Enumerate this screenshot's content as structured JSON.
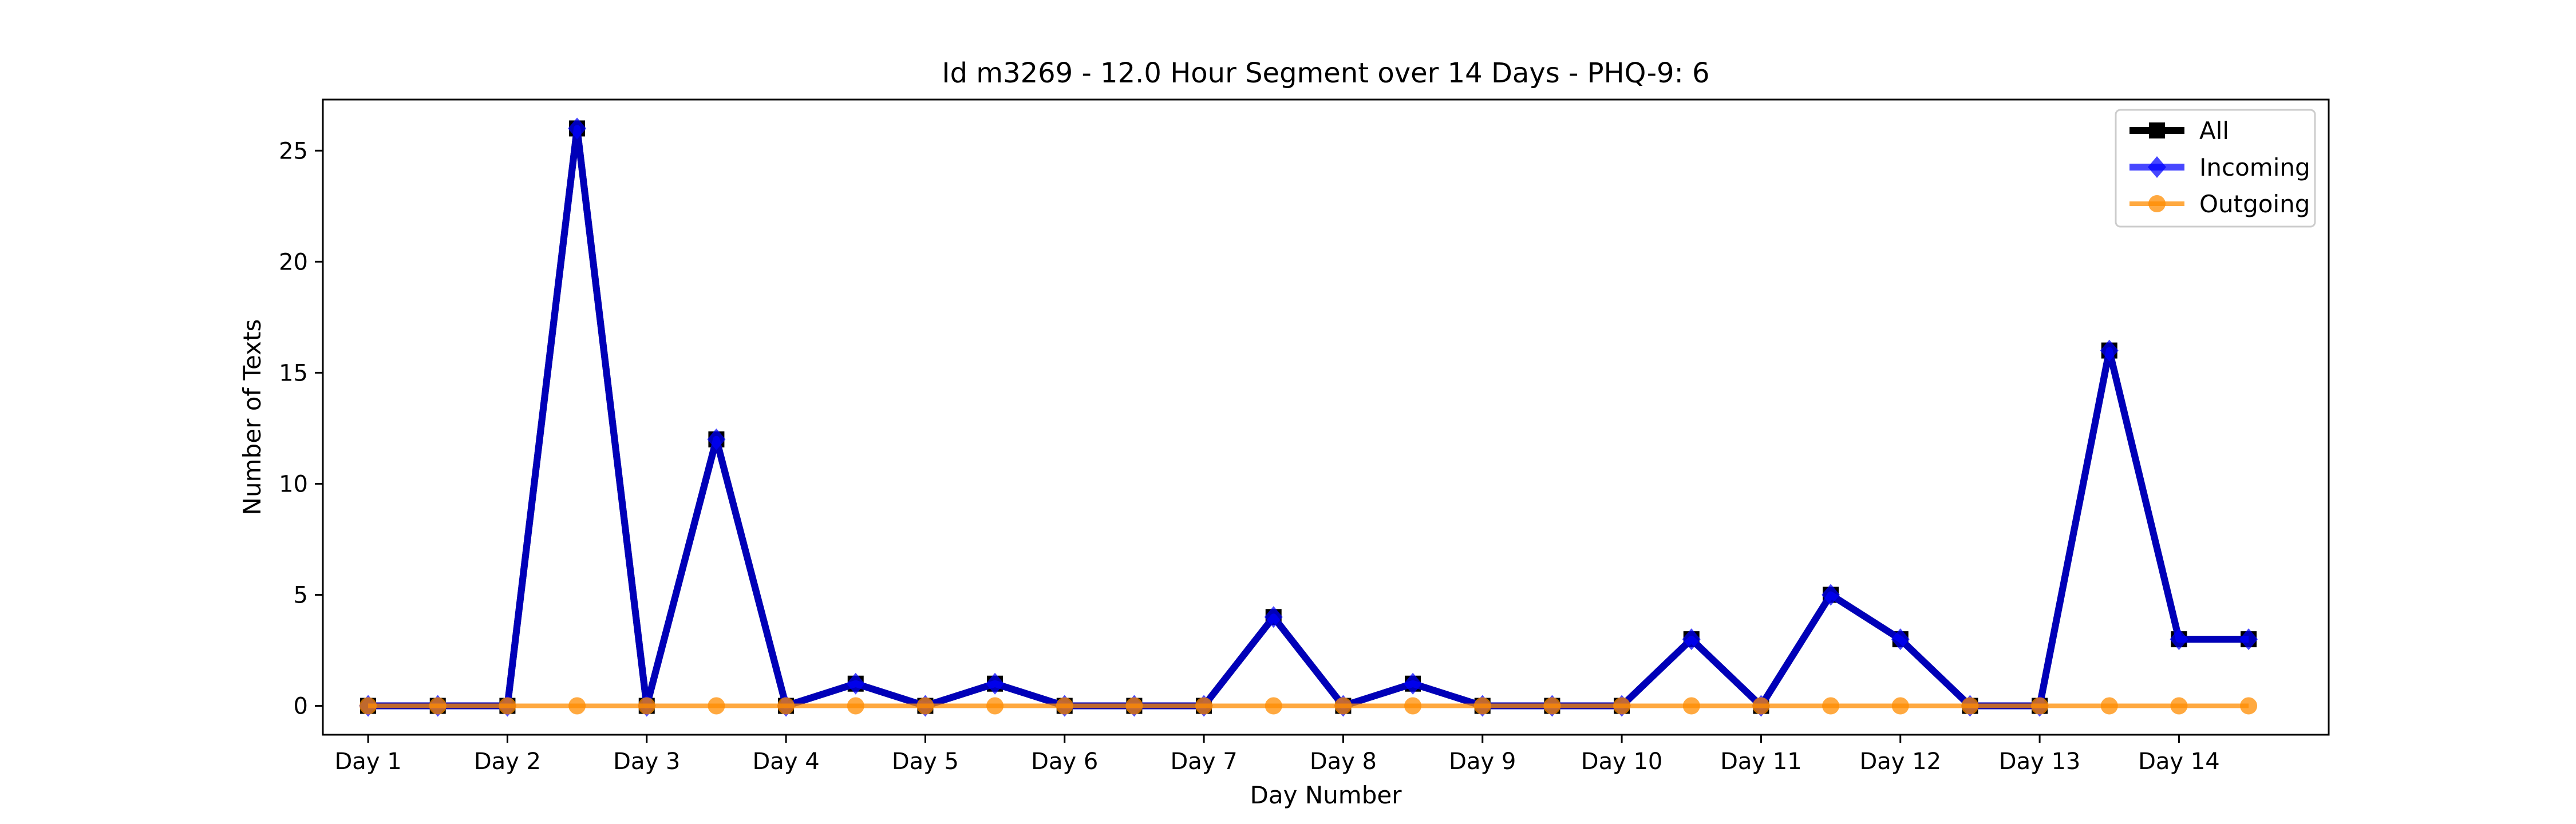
{
  "chart_data": {
    "type": "line",
    "title": "Id m3269 - 12.0 Hour Segment over 14 Days - PHQ-9: 6",
    "xlabel": "Day Number",
    "ylabel": "Number of Texts",
    "x_tick_labels": [
      "Day 1",
      "Day 2",
      "Day 3",
      "Day 4",
      "Day 5",
      "Day 6",
      "Day 7",
      "Day 8",
      "Day 9",
      "Day 10",
      "Day 11",
      "Day 12",
      "Day 13",
      "Day 14"
    ],
    "y_ticks": [
      0,
      5,
      10,
      15,
      20,
      25
    ],
    "ylim": [
      -1.3,
      27.3
    ],
    "xlim": [
      -0.65,
      28.15
    ],
    "grid": false,
    "legend_position": "top-right",
    "series": [
      {
        "name": "All",
        "color": "#000000",
        "marker": "square",
        "x": [
          0,
          1,
          2,
          3,
          4,
          5,
          6,
          7,
          8,
          9,
          10,
          11,
          12,
          13,
          14,
          15,
          16,
          17,
          18,
          19,
          20,
          21,
          22,
          23,
          24,
          25,
          26,
          27
        ],
        "values": [
          0,
          0,
          0,
          26,
          0,
          12,
          0,
          1,
          0,
          1,
          0,
          0,
          0,
          4,
          0,
          1,
          0,
          0,
          0,
          3,
          0,
          5,
          3,
          0,
          0,
          16,
          3,
          3
        ]
      },
      {
        "name": "Incoming",
        "color": "#0000ff",
        "marker": "diamond",
        "x": [
          0,
          1,
          2,
          3,
          4,
          5,
          6,
          7,
          8,
          9,
          10,
          11,
          12,
          13,
          14,
          15,
          16,
          17,
          18,
          19,
          20,
          21,
          22,
          23,
          24,
          25,
          26,
          27
        ],
        "values": [
          0,
          0,
          0,
          26,
          0,
          12,
          0,
          1,
          0,
          1,
          0,
          0,
          0,
          4,
          0,
          1,
          0,
          0,
          0,
          3,
          0,
          5,
          3,
          0,
          0,
          16,
          3,
          3
        ]
      },
      {
        "name": "Outgoing",
        "color": "#ff8c00",
        "marker": "circle",
        "x": [
          0,
          1,
          2,
          3,
          4,
          5,
          6,
          7,
          8,
          9,
          10,
          11,
          12,
          13,
          14,
          15,
          16,
          17,
          18,
          19,
          20,
          21,
          22,
          23,
          24,
          25,
          26,
          27
        ],
        "values": [
          0,
          0,
          0,
          0,
          0,
          0,
          0,
          0,
          0,
          0,
          0,
          0,
          0,
          0,
          0,
          0,
          0,
          0,
          0,
          0,
          0,
          0,
          0,
          0,
          0,
          0,
          0,
          0
        ]
      }
    ]
  }
}
